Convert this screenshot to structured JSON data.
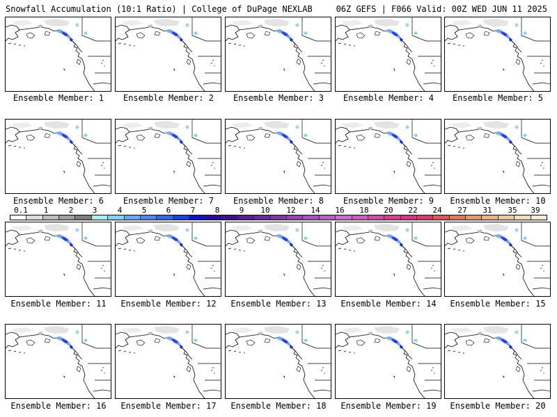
{
  "header": {
    "left": "Snowfall Accumulation (10:1 Ratio) | College of DuPage NEXLAB",
    "right": "06Z GEFS | F066 Valid: 00Z WED JUN 11 2025"
  },
  "panels": [
    {
      "label": "Ensemble Member: 1"
    },
    {
      "label": "Ensemble Member: 2"
    },
    {
      "label": "Ensemble Member: 3"
    },
    {
      "label": "Ensemble Member: 4"
    },
    {
      "label": "Ensemble Member: 5"
    },
    {
      "label": "Ensemble Member: 6"
    },
    {
      "label": "Ensemble Member: 7"
    },
    {
      "label": "Ensemble Member: 8"
    },
    {
      "label": "Ensemble Member: 9"
    },
    {
      "label": "Ensemble Member: 10"
    },
    {
      "label": "Ensemble Member: 11"
    },
    {
      "label": "Ensemble Member: 12"
    },
    {
      "label": "Ensemble Member: 13"
    },
    {
      "label": "Ensemble Member: 14"
    },
    {
      "label": "Ensemble Member: 15"
    },
    {
      "label": "Ensemble Member: 16"
    },
    {
      "label": "Ensemble Member: 17"
    },
    {
      "label": "Ensemble Member: 18"
    },
    {
      "label": "Ensemble Member: 19"
    },
    {
      "label": "Ensemble Member: 20"
    }
  ],
  "colorbar": {
    "labels": [
      "0.1",
      "1",
      "2",
      "3",
      "4",
      "5",
      "6",
      "7",
      "8",
      "9",
      "10",
      "12",
      "14",
      "16",
      "18",
      "20",
      "22",
      "24",
      "27",
      "31",
      "35",
      "39"
    ],
    "colors": [
      "#ffffff",
      "#dcdcdc",
      "#bdbdbd",
      "#9e9e9e",
      "#7f7f7f",
      "#aeeeee",
      "#87cefa",
      "#6ca6f0",
      "#4f86e8",
      "#3466e0",
      "#1a44d8",
      "#1010c8",
      "#2a0a9a",
      "#3d1488",
      "#55208e",
      "#6a2c96",
      "#7e389e",
      "#9245aa",
      "#a453b8",
      "#b662c4",
      "#c46fcc",
      "#c85cb8",
      "#cc4ca6",
      "#d04094",
      "#d43482",
      "#d53a6e",
      "#d8585a",
      "#db7a5e",
      "#e09a72",
      "#e6b48a",
      "#ecc8a0",
      "#f2dcba",
      "#fae8d4"
    ]
  },
  "legend_colors": {
    "snow_light": "#d8d8d8",
    "snow_mid": "#7fb8ff",
    "snow_heavy": "#1f3cff",
    "snow_max": "#8a1a9a"
  }
}
